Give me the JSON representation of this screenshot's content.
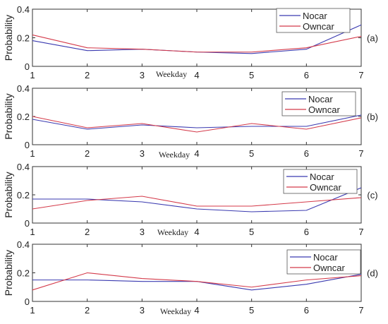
{
  "colors": {
    "nocar": "#3a3ab0",
    "owncar": "#d43a4a",
    "axis": "#333333"
  },
  "chart_data": [
    {
      "type": "line",
      "panel_label": "(a)",
      "xlabel": "Weekday",
      "ylabel": "Probability",
      "ylim": [
        0,
        0.4
      ],
      "x": [
        1,
        2,
        3,
        4,
        5,
        6,
        7
      ],
      "xticks": [
        "1",
        "2",
        "3",
        "4",
        "5",
        "6",
        "7"
      ],
      "yticks": [
        "0",
        "0.2",
        "0.4"
      ],
      "legend": "top-right",
      "series": [
        {
          "name": "Nocar",
          "values": [
            0.18,
            0.11,
            0.12,
            0.1,
            0.09,
            0.12,
            0.29
          ]
        },
        {
          "name": "Owncar",
          "values": [
            0.22,
            0.13,
            0.12,
            0.1,
            0.1,
            0.13,
            0.21
          ]
        }
      ]
    },
    {
      "type": "line",
      "panel_label": "(b)",
      "xlabel": "Weekday",
      "ylabel": "Probability",
      "ylim": [
        0,
        0.4
      ],
      "x": [
        1,
        2,
        3,
        4,
        5,
        6,
        7
      ],
      "xticks": [
        "1",
        "2",
        "3",
        "4",
        "5",
        "6",
        "7"
      ],
      "yticks": [
        "0",
        "0.2",
        "0.4"
      ],
      "legend": "top-right",
      "series": [
        {
          "name": "Nocar",
          "values": [
            0.18,
            0.11,
            0.14,
            0.12,
            0.13,
            0.13,
            0.21
          ]
        },
        {
          "name": "Owncar",
          "values": [
            0.2,
            0.12,
            0.15,
            0.09,
            0.15,
            0.11,
            0.19
          ]
        }
      ]
    },
    {
      "type": "line",
      "panel_label": "(c)",
      "xlabel": "Weekday",
      "ylabel": "Probability",
      "ylim": [
        0,
        0.4
      ],
      "x": [
        1,
        2,
        3,
        4,
        5,
        6,
        7
      ],
      "xticks": [
        "1",
        "2",
        "3",
        "4",
        "5",
        "6",
        "7"
      ],
      "yticks": [
        "0",
        "0.2",
        "0.4"
      ],
      "legend": "top-right",
      "series": [
        {
          "name": "Nocar",
          "values": [
            0.17,
            0.17,
            0.15,
            0.1,
            0.08,
            0.09,
            0.25
          ]
        },
        {
          "name": "Owncar",
          "values": [
            0.1,
            0.16,
            0.19,
            0.12,
            0.12,
            0.15,
            0.18
          ]
        }
      ]
    },
    {
      "type": "line",
      "panel_label": "(d)",
      "xlabel": "Weekday",
      "ylabel": "Probability",
      "ylim": [
        0,
        0.4
      ],
      "x": [
        1,
        2,
        3,
        4,
        5,
        6,
        7
      ],
      "xticks": [
        "1",
        "2",
        "3",
        "4",
        "5",
        "6",
        "7"
      ],
      "yticks": [
        "0",
        "0.2",
        "0.4"
      ],
      "legend": "top-right",
      "series": [
        {
          "name": "Nocar",
          "values": [
            0.15,
            0.15,
            0.14,
            0.14,
            0.08,
            0.12,
            0.19
          ]
        },
        {
          "name": "Owncar",
          "values": [
            0.08,
            0.2,
            0.16,
            0.14,
            0.1,
            0.15,
            0.18
          ]
        }
      ]
    }
  ]
}
